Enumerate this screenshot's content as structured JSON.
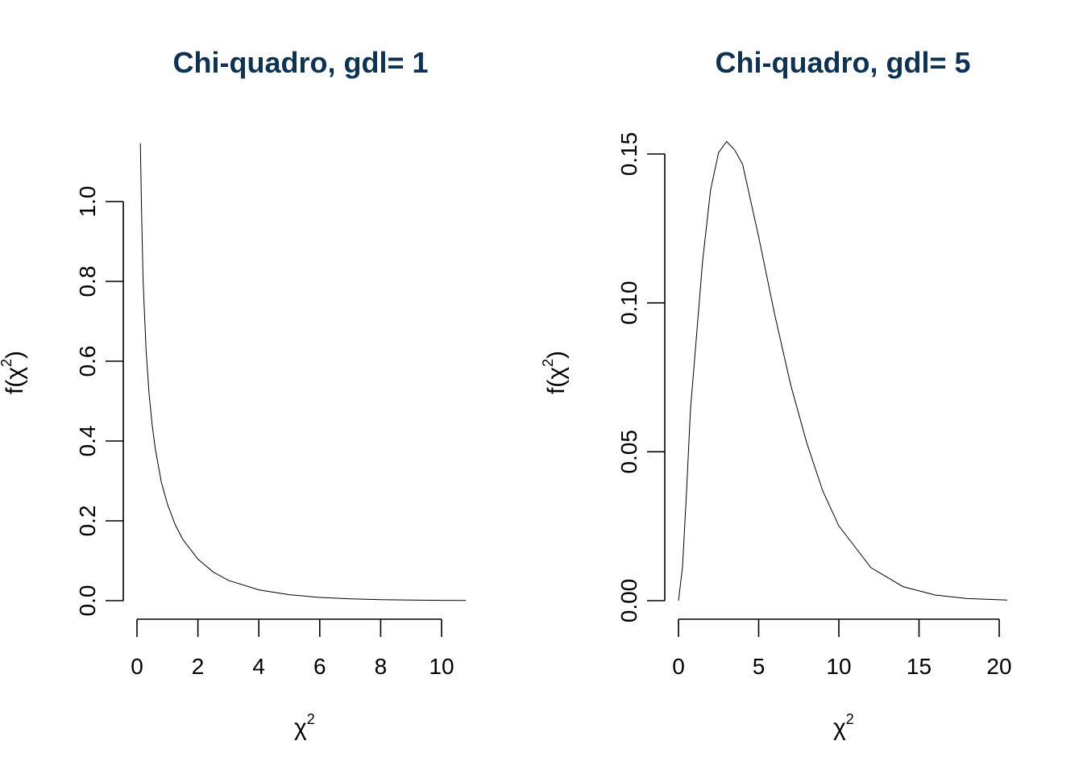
{
  "colors": {
    "title": "#0d3253",
    "line": "#000000",
    "background": "#ffffff"
  },
  "chart_data": [
    {
      "type": "line",
      "title": "Chi-quadro, gdl= 1",
      "xlabel": "χ",
      "xlabel_sup": "2",
      "ylabel": "f(χ",
      "ylabel_sup": "2",
      "ylabel_close": ")",
      "df": 1,
      "xlim": [
        0,
        10.8
      ],
      "ylim": [
        0,
        1.15
      ],
      "xticks": [
        0,
        2,
        4,
        6,
        8,
        10
      ],
      "xtick_labels": [
        "0",
        "2",
        "4",
        "6",
        "8",
        "10"
      ],
      "yticks": [
        0,
        0.2,
        0.4,
        0.6,
        0.8,
        1.0
      ],
      "ytick_labels": [
        "0.0",
        "0.2",
        "0.4",
        "0.6",
        "0.8",
        "1.0"
      ],
      "series": [
        {
          "x": [
            0.11,
            0.15,
            0.2,
            0.3,
            0.4,
            0.5,
            0.6,
            0.8,
            1.0,
            1.25,
            1.5,
            2.0,
            2.5,
            3.0,
            4.0,
            5.0,
            6.0,
            7.0,
            8.0,
            9.0,
            10.0,
            10.8
          ],
          "y": [
            1.146,
            0.972,
            0.8,
            0.627,
            0.516,
            0.439,
            0.381,
            0.297,
            0.242,
            0.191,
            0.154,
            0.104,
            0.072,
            0.051,
            0.027,
            0.015,
            0.0081,
            0.0045,
            0.0025,
            0.0014,
            0.00077,
            0.00048
          ]
        }
      ]
    },
    {
      "type": "line",
      "title": "Chi-quadro, gdl= 5",
      "xlabel": "χ",
      "xlabel_sup": "2",
      "ylabel": "f(χ",
      "ylabel_sup": "2",
      "ylabel_close": ")",
      "df": 5,
      "xlim": [
        0,
        20.5
      ],
      "ylim": [
        0,
        0.154
      ],
      "xticks": [
        0,
        5,
        10,
        15,
        20
      ],
      "xtick_labels": [
        "0",
        "5",
        "10",
        "15",
        "20"
      ],
      "yticks": [
        0,
        0.05,
        0.1,
        0.15
      ],
      "ytick_labels": [
        "0.00",
        "0.05",
        "0.10",
        "0.15"
      ],
      "series": [
        {
          "x": [
            0,
            0.25,
            0.5,
            0.75,
            1,
            1.5,
            2,
            2.5,
            3,
            3.5,
            4,
            5,
            6,
            7,
            8,
            9,
            10,
            12,
            14,
            16,
            18,
            20,
            20.5
          ],
          "y": [
            0,
            0.0112,
            0.0366,
            0.0643,
            0.0807,
            0.1139,
            0.1379,
            0.1505,
            0.1542,
            0.1514,
            0.1465,
            0.1222,
            0.0961,
            0.0724,
            0.053,
            0.0368,
            0.0251,
            0.0111,
            0.0047,
            0.0019,
            0.0007,
            0.0003,
            0.0002
          ]
        }
      ]
    }
  ]
}
